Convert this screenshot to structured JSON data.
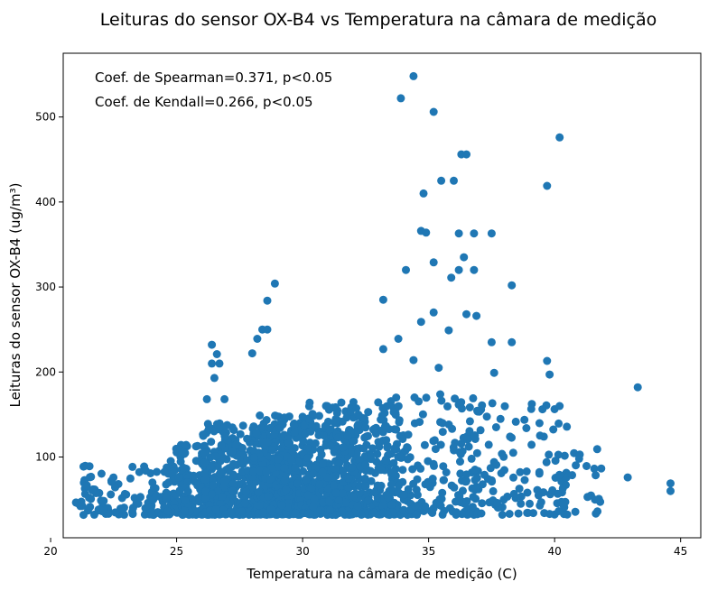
{
  "chart_data": {
    "type": "scatter",
    "title": "Leituras do sensor OX-B4 vs Temperatura na câmara de medição",
    "xlabel": "Temperatura na câmara de medição (C)",
    "ylabel": "Leituras do sensor OX-B4 (ug/m³)",
    "xlim": [
      20.5,
      45.8
    ],
    "ylim": [
      5,
      575
    ],
    "xticks": [
      20,
      25,
      30,
      35,
      40,
      45
    ],
    "yticks": [
      100,
      200,
      300,
      400,
      500
    ],
    "grid": false,
    "marker_color": "#1f77b4",
    "annotations": [
      "Coef. de Spearman=0.371, p<0.05",
      "Coef. de Kendall=0.266, p<0.05"
    ],
    "clusters": [
      {
        "x": [
          21.0,
          26.0
        ],
        "y": [
          32,
          90
        ],
        "count": 140
      },
      {
        "x": [
          24.5,
          27.0
        ],
        "y": [
          32,
          115
        ],
        "count": 160
      },
      {
        "x": [
          26.0,
          30.0
        ],
        "y": [
          32,
          140
        ],
        "count": 520
      },
      {
        "x": [
          28.0,
          32.5
        ],
        "y": [
          32,
          150
        ],
        "count": 480
      },
      {
        "x": [
          30.0,
          34.0
        ],
        "y": [
          32,
          165
        ],
        "count": 320
      },
      {
        "x": [
          33.0,
          37.0
        ],
        "y": [
          32,
          175
        ],
        "count": 160
      },
      {
        "x": [
          36.0,
          40.5
        ],
        "y": [
          32,
          175
        ],
        "count": 120
      },
      {
        "x": [
          40.0,
          42.0
        ],
        "y": [
          32,
          110
        ],
        "count": 30
      }
    ],
    "points": [
      {
        "x": 34.4,
        "y": 548
      },
      {
        "x": 33.9,
        "y": 522
      },
      {
        "x": 35.2,
        "y": 506
      },
      {
        "x": 40.2,
        "y": 476
      },
      {
        "x": 36.3,
        "y": 456
      },
      {
        "x": 36.5,
        "y": 456
      },
      {
        "x": 35.5,
        "y": 425
      },
      {
        "x": 36.0,
        "y": 425
      },
      {
        "x": 39.7,
        "y": 419
      },
      {
        "x": 34.8,
        "y": 410
      },
      {
        "x": 34.7,
        "y": 366
      },
      {
        "x": 34.9,
        "y": 364
      },
      {
        "x": 36.2,
        "y": 363
      },
      {
        "x": 36.8,
        "y": 363
      },
      {
        "x": 37.5,
        "y": 363
      },
      {
        "x": 36.4,
        "y": 335
      },
      {
        "x": 35.2,
        "y": 329
      },
      {
        "x": 34.1,
        "y": 320
      },
      {
        "x": 36.2,
        "y": 320
      },
      {
        "x": 36.8,
        "y": 320
      },
      {
        "x": 35.9,
        "y": 311
      },
      {
        "x": 28.9,
        "y": 304
      },
      {
        "x": 38.3,
        "y": 302
      },
      {
        "x": 33.2,
        "y": 285
      },
      {
        "x": 28.6,
        "y": 284
      },
      {
        "x": 35.2,
        "y": 270
      },
      {
        "x": 36.5,
        "y": 268
      },
      {
        "x": 36.9,
        "y": 266
      },
      {
        "x": 34.7,
        "y": 259
      },
      {
        "x": 35.8,
        "y": 249
      },
      {
        "x": 28.4,
        "y": 250
      },
      {
        "x": 28.6,
        "y": 250
      },
      {
        "x": 33.8,
        "y": 239
      },
      {
        "x": 28.2,
        "y": 239
      },
      {
        "x": 37.5,
        "y": 235
      },
      {
        "x": 38.3,
        "y": 235
      },
      {
        "x": 26.4,
        "y": 232
      },
      {
        "x": 33.2,
        "y": 227
      },
      {
        "x": 28.0,
        "y": 222
      },
      {
        "x": 26.6,
        "y": 221
      },
      {
        "x": 26.4,
        "y": 210
      },
      {
        "x": 26.7,
        "y": 210
      },
      {
        "x": 43.3,
        "y": 182
      },
      {
        "x": 42.9,
        "y": 76
      },
      {
        "x": 44.6,
        "y": 69
      },
      {
        "x": 44.6,
        "y": 60
      },
      {
        "x": 41.7,
        "y": 36
      },
      {
        "x": 39.7,
        "y": 213
      },
      {
        "x": 39.8,
        "y": 197
      },
      {
        "x": 37.6,
        "y": 199
      },
      {
        "x": 40.2,
        "y": 160
      },
      {
        "x": 35.4,
        "y": 205
      },
      {
        "x": 34.4,
        "y": 214
      },
      {
        "x": 26.5,
        "y": 193
      },
      {
        "x": 26.9,
        "y": 168
      },
      {
        "x": 26.2,
        "y": 168
      }
    ]
  }
}
